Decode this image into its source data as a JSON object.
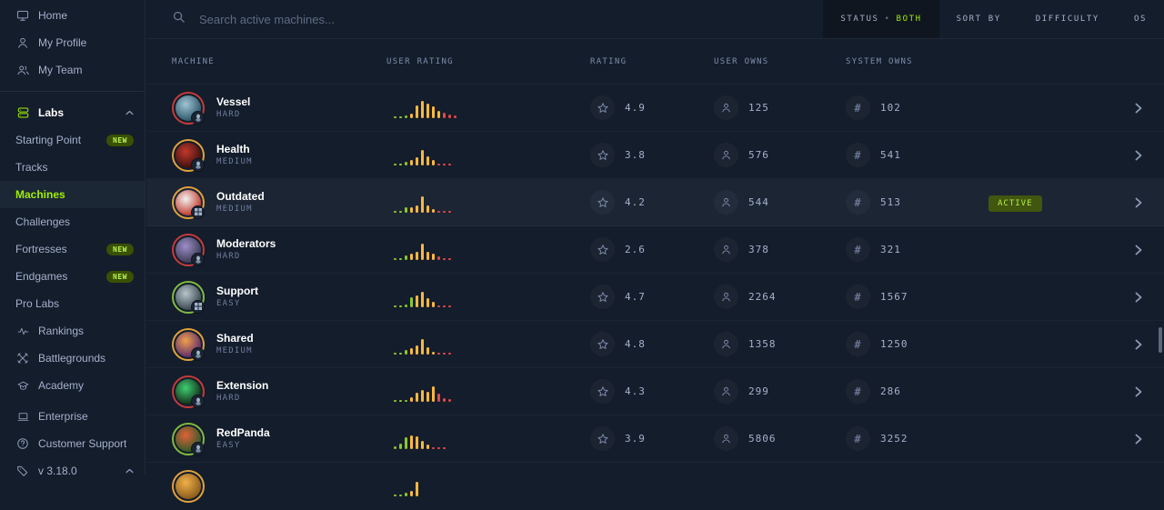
{
  "colors": {
    "accent_green": "#9fef00",
    "bar_green": "#89ca2e",
    "bar_orange": "#ffb83d",
    "bar_red": "#e3474c",
    "ring_easy": "#7fbc3f",
    "ring_medium": "#e0a23c",
    "ring_hard": "#c53b3b",
    "row_highlight": "#1b2534"
  },
  "sidebar": {
    "items": [
      {
        "label": "Home",
        "icon": "home-icon"
      },
      {
        "label": "My Profile",
        "icon": "profile-icon"
      },
      {
        "label": "My Team",
        "icon": "team-icon"
      },
      {
        "divider": true
      },
      {
        "label": "Labs",
        "icon": "labs-icon",
        "bold": true,
        "chevron": "up",
        "green_icon": true
      },
      {
        "label": "Starting Point",
        "sub": true,
        "badge": "NEW"
      },
      {
        "label": "Tracks",
        "sub": true
      },
      {
        "label": "Machines",
        "sub": true,
        "selected": true
      },
      {
        "label": "Challenges",
        "sub": true
      },
      {
        "label": "Fortresses",
        "sub": true,
        "badge": "NEW"
      },
      {
        "label": "Endgames",
        "sub": true,
        "badge": "NEW"
      },
      {
        "label": "Pro Labs",
        "sub": true
      },
      {
        "label": "Rankings",
        "icon": "rankings-icon"
      },
      {
        "label": "Battlegrounds",
        "icon": "battlegrounds-icon"
      },
      {
        "label": "Academy",
        "icon": "academy-icon"
      },
      {
        "gap": true
      },
      {
        "label": "Enterprise",
        "icon": "enterprise-icon"
      },
      {
        "label": "Customer Support",
        "icon": "customer-support-icon"
      },
      {
        "label": "v 3.18.0",
        "icon": "version-tag-icon",
        "chevron": "up"
      }
    ]
  },
  "topbar": {
    "search_placeholder": "Search active machines...",
    "filters": [
      {
        "label": "STATUS",
        "value": "BOTH",
        "dark": true
      },
      {
        "label": "SORT BY"
      },
      {
        "label": "DIFFICULTY"
      },
      {
        "label": "OS"
      }
    ]
  },
  "table": {
    "columns": [
      "MACHINE",
      "USER RATING",
      "RATING",
      "USER OWNS",
      "SYSTEM OWNS"
    ],
    "rows": [
      {
        "name": "Vessel",
        "difficulty": "HARD",
        "os": "linux",
        "rating": "4.9",
        "user_owns": "125",
        "system_owns": "102",
        "active": false,
        "avatar": [
          "#9fc4d4",
          "#2b5566"
        ],
        "hist": [
          [
            2,
            "g"
          ],
          [
            2,
            "g"
          ],
          [
            3,
            "g"
          ],
          [
            5,
            "o"
          ],
          [
            14,
            "o"
          ],
          [
            19,
            "o"
          ],
          [
            16,
            "o"
          ],
          [
            13,
            "o"
          ],
          [
            8,
            "o"
          ],
          [
            6,
            "r"
          ],
          [
            4,
            "r"
          ],
          [
            3,
            "r"
          ]
        ]
      },
      {
        "name": "Health",
        "difficulty": "MEDIUM",
        "os": "linux",
        "rating": "3.8",
        "user_owns": "576",
        "system_owns": "541",
        "active": false,
        "avatar": [
          "#c0392b",
          "#3a0f0f"
        ],
        "hist": [
          [
            2,
            "g"
          ],
          [
            2,
            "g"
          ],
          [
            4,
            "g"
          ],
          [
            6,
            "o"
          ],
          [
            9,
            "o"
          ],
          [
            17,
            "o"
          ],
          [
            10,
            "o"
          ],
          [
            6,
            "o"
          ],
          [
            2,
            "r"
          ],
          [
            2,
            "r"
          ],
          [
            2,
            "r"
          ]
        ]
      },
      {
        "name": "Outdated",
        "difficulty": "MEDIUM",
        "os": "windows",
        "rating": "4.2",
        "user_owns": "544",
        "system_owns": "513",
        "active": true,
        "status_badge": "ACTIVE",
        "avatar": [
          "#f2f2f2",
          "#c0392b"
        ],
        "hist": [
          [
            2,
            "g"
          ],
          [
            2,
            "g"
          ],
          [
            6,
            "g"
          ],
          [
            6,
            "o"
          ],
          [
            8,
            "o"
          ],
          [
            18,
            "o"
          ],
          [
            8,
            "o"
          ],
          [
            4,
            "o"
          ],
          [
            2,
            "r"
          ],
          [
            2,
            "r"
          ],
          [
            2,
            "r"
          ]
        ]
      },
      {
        "name": "Moderators",
        "difficulty": "HARD",
        "os": "linux",
        "rating": "2.6",
        "user_owns": "378",
        "system_owns": "321",
        "active": false,
        "avatar": [
          "#9d8ec9",
          "#3b3a52"
        ],
        "hist": [
          [
            2,
            "g"
          ],
          [
            2,
            "g"
          ],
          [
            5,
            "g"
          ],
          [
            7,
            "o"
          ],
          [
            9,
            "o"
          ],
          [
            18,
            "o"
          ],
          [
            9,
            "o"
          ],
          [
            7,
            "o"
          ],
          [
            4,
            "r"
          ],
          [
            2,
            "r"
          ],
          [
            2,
            "r"
          ]
        ]
      },
      {
        "name": "Support",
        "difficulty": "EASY",
        "os": "windows",
        "rating": "4.7",
        "user_owns": "2264",
        "system_owns": "1567",
        "active": false,
        "avatar": [
          "#b8c4ca",
          "#37474f"
        ],
        "hist": [
          [
            2,
            "g"
          ],
          [
            2,
            "g"
          ],
          [
            3,
            "g"
          ],
          [
            11,
            "g"
          ],
          [
            13,
            "o"
          ],
          [
            17,
            "o"
          ],
          [
            10,
            "o"
          ],
          [
            6,
            "o"
          ],
          [
            2,
            "r"
          ],
          [
            2,
            "r"
          ],
          [
            2,
            "r"
          ]
        ]
      },
      {
        "name": "Shared",
        "difficulty": "MEDIUM",
        "os": "linux",
        "rating": "4.8",
        "user_owns": "1358",
        "system_owns": "1250",
        "active": false,
        "avatar": [
          "#f0a04a",
          "#5b2a6e"
        ],
        "hist": [
          [
            2,
            "g"
          ],
          [
            2,
            "g"
          ],
          [
            5,
            "g"
          ],
          [
            7,
            "o"
          ],
          [
            10,
            "o"
          ],
          [
            17,
            "o"
          ],
          [
            8,
            "o"
          ],
          [
            3,
            "o"
          ],
          [
            2,
            "r"
          ],
          [
            2,
            "r"
          ],
          [
            2,
            "r"
          ]
        ]
      },
      {
        "name": "Extension",
        "difficulty": "HARD",
        "os": "linux",
        "rating": "4.3",
        "user_owns": "299",
        "system_owns": "286",
        "active": false,
        "avatar": [
          "#3ecf71",
          "#122a18"
        ],
        "hist": [
          [
            2,
            "g"
          ],
          [
            2,
            "g"
          ],
          [
            2,
            "g"
          ],
          [
            5,
            "o"
          ],
          [
            10,
            "o"
          ],
          [
            13,
            "o"
          ],
          [
            11,
            "o"
          ],
          [
            17,
            "o"
          ],
          [
            9,
            "r"
          ],
          [
            4,
            "r"
          ],
          [
            3,
            "r"
          ]
        ]
      },
      {
        "name": "RedPanda",
        "difficulty": "EASY",
        "os": "linux",
        "rating": "3.9",
        "user_owns": "5806",
        "system_owns": "3252",
        "active": false,
        "avatar": [
          "#e0623a",
          "#2d5a27"
        ],
        "hist": [
          [
            3,
            "g"
          ],
          [
            6,
            "g"
          ],
          [
            13,
            "g"
          ],
          [
            15,
            "o"
          ],
          [
            14,
            "o"
          ],
          [
            9,
            "o"
          ],
          [
            5,
            "o"
          ],
          [
            2,
            "r"
          ],
          [
            2,
            "r"
          ],
          [
            2,
            "r"
          ]
        ]
      }
    ],
    "partial_row": {
      "ring": "medium",
      "avatar": [
        "#f0b14a",
        "#8a5a1a"
      ],
      "hist": [
        [
          2,
          "g"
        ],
        [
          2,
          "g"
        ],
        [
          4,
          "g"
        ],
        [
          6,
          "o"
        ],
        [
          16,
          "o"
        ]
      ]
    }
  }
}
